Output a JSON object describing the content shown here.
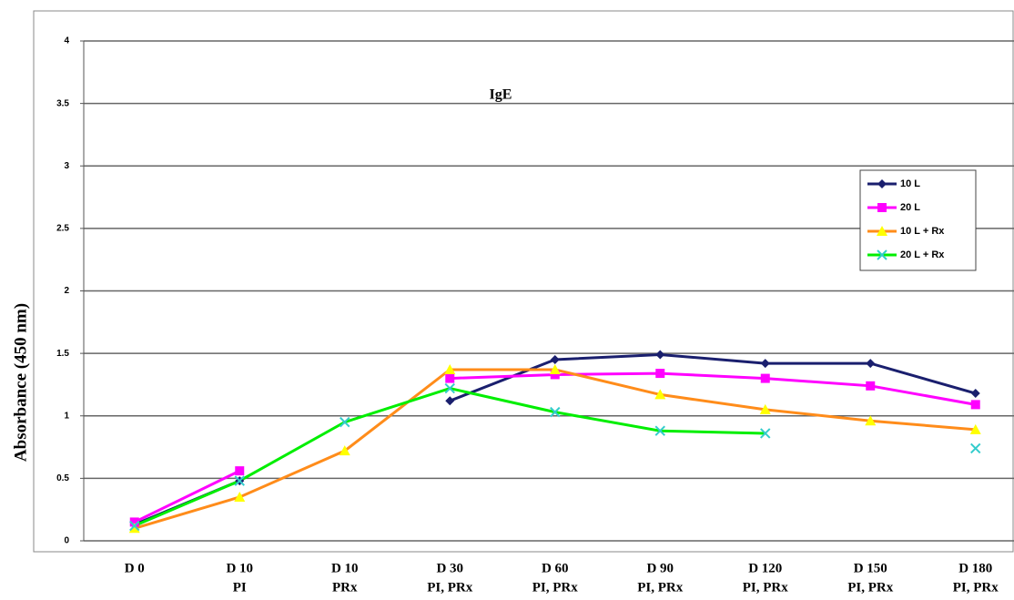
{
  "chart_data": {
    "type": "line",
    "title": "IgE",
    "y_label": "Absorbance (450 nm)",
    "categories": [
      [
        "D 0"
      ],
      [
        "D 10",
        "PI"
      ],
      [
        "D 10",
        "PRx"
      ],
      [
        "D 30",
        "PI, PRx"
      ],
      [
        "D 60",
        "PI, PRx"
      ],
      [
        "D 90",
        "PI, PRx"
      ],
      [
        "D 120",
        "PI, PRx"
      ],
      [
        "D 150",
        "PI, PRx"
      ],
      [
        "D 180",
        "PI, PRx"
      ]
    ],
    "series": [
      {
        "name": "10 L",
        "color": "#1a1f6e",
        "marker_color": "#1a1f6e",
        "marker": "diamond",
        "values": [
          0.13,
          0.48,
          null,
          1.12,
          1.45,
          1.49,
          1.42,
          1.42,
          1.18
        ]
      },
      {
        "name": "20 L",
        "color": "#ff00ff",
        "marker_color": "#ff00ff",
        "marker": "square",
        "values": [
          0.15,
          0.56,
          null,
          1.3,
          1.33,
          1.34,
          1.3,
          1.24,
          1.09
        ]
      },
      {
        "name": "10 L + Rx",
        "color": "#ff8c1a",
        "marker_color": "#ffff00",
        "marker": "triangle",
        "values": [
          0.1,
          0.35,
          0.72,
          1.37,
          1.37,
          1.17,
          1.05,
          0.96,
          0.89
        ]
      },
      {
        "name": "20 L + Rx",
        "color": "#00ee00",
        "marker_color": "#33cccc",
        "marker": "x",
        "values": [
          0.12,
          0.48,
          0.95,
          1.22,
          1.03,
          0.88,
          0.86,
          null,
          0.74
        ]
      }
    ],
    "ylim": [
      0,
      4
    ],
    "yticks": [
      0,
      0.5,
      1,
      1.5,
      2,
      2.5,
      3,
      3.5,
      4
    ],
    "grid": true,
    "legend": "right"
  }
}
